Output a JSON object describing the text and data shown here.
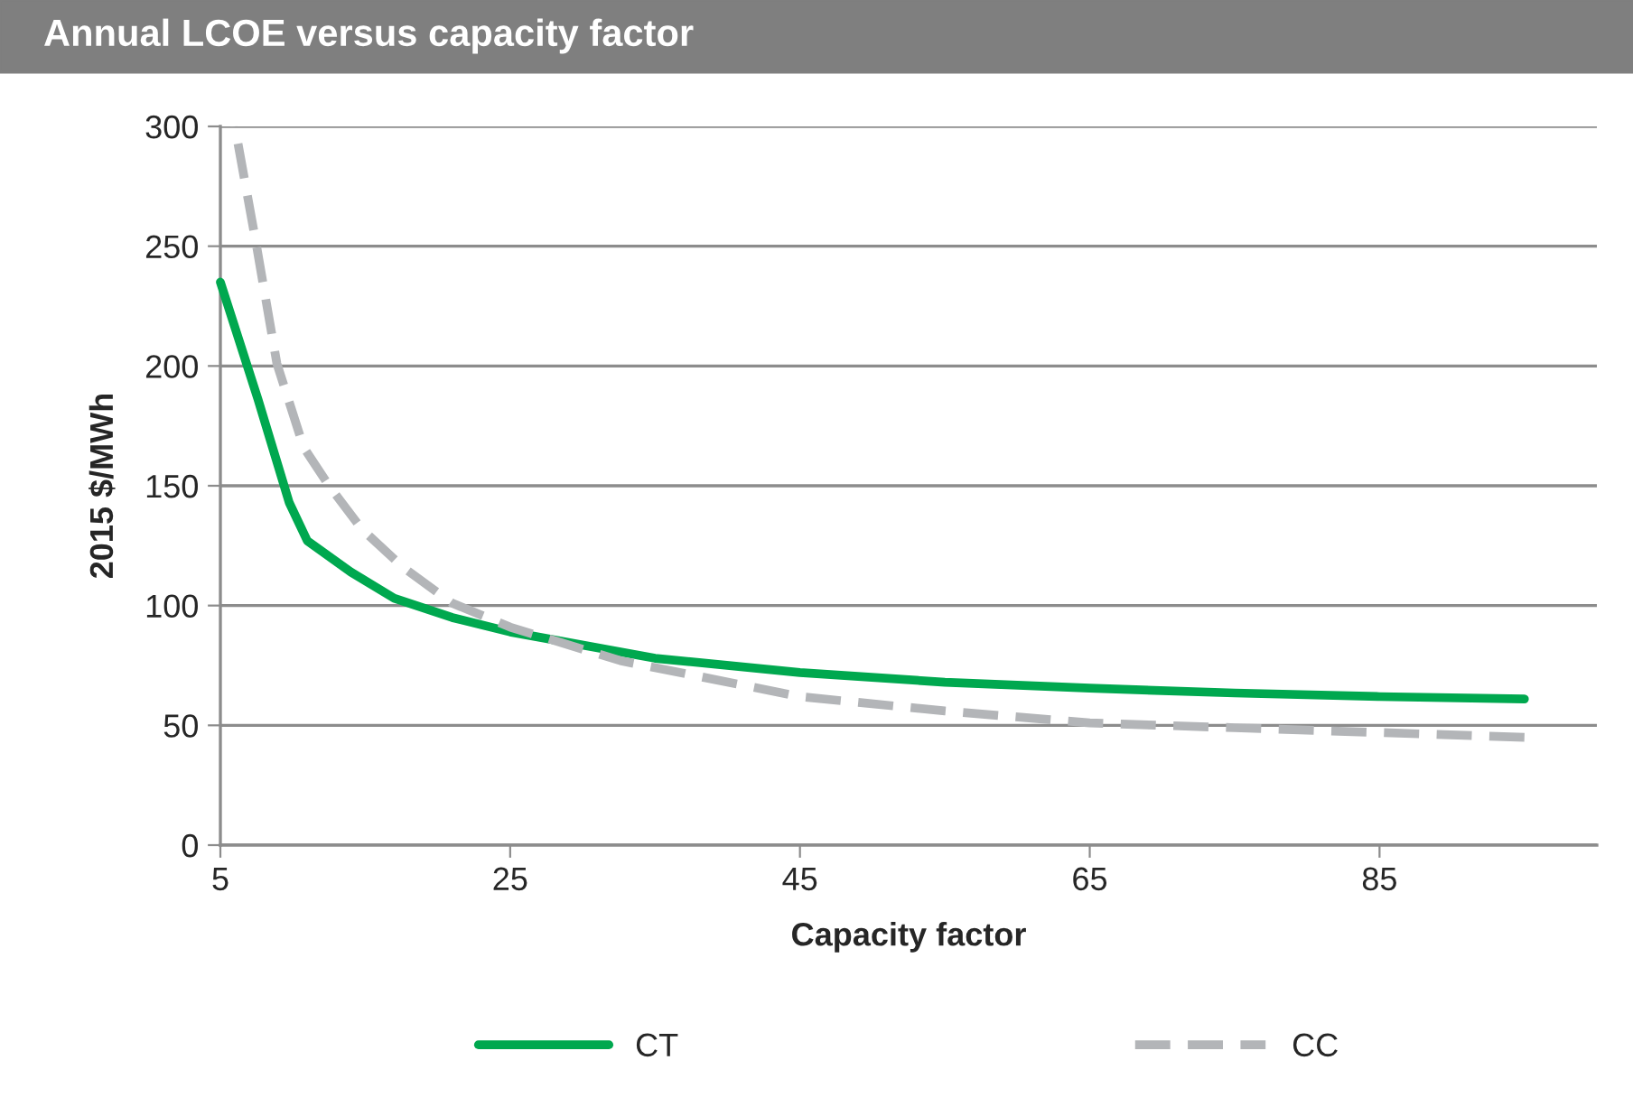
{
  "chart_data": {
    "type": "line",
    "title": "Annual LCOE versus capacity factor",
    "xlabel": "Capacity factor",
    "ylabel": "2015 $/MWh",
    "series": [
      {
        "name": "CT",
        "color": "#00a84f",
        "line_style": "solid",
        "x": [
          5,
          7.6,
          9.75,
          11,
          14,
          17,
          21,
          25,
          35,
          45,
          55,
          65,
          75,
          85,
          95
        ],
        "values": [
          235,
          186,
          143,
          127,
          114,
          103,
          95,
          89,
          78,
          72,
          68,
          65.5,
          63.5,
          62,
          61
        ]
      },
      {
        "name": "CC",
        "color": "#b3b5b8",
        "line_style": "dashed",
        "x": [
          6,
          7.5,
          8.9,
          10.75,
          12.5,
          14.75,
          17.6,
          21,
          25,
          32.6,
          45,
          55,
          65,
          75,
          85,
          95
        ],
        "values": [
          300,
          250,
          201,
          166,
          150,
          132,
          116,
          101,
          91,
          77,
          62,
          56,
          51,
          49,
          47,
          45
        ]
      }
    ],
    "xlim": [
      5,
      100
    ],
    "xticks": [
      5,
      25,
      45,
      65,
      85
    ],
    "ylim": [
      0,
      300
    ],
    "yticks": [
      0,
      50,
      100,
      150,
      200,
      250,
      300
    ],
    "grid": "y",
    "legend": "bottom",
    "marker": "none"
  }
}
